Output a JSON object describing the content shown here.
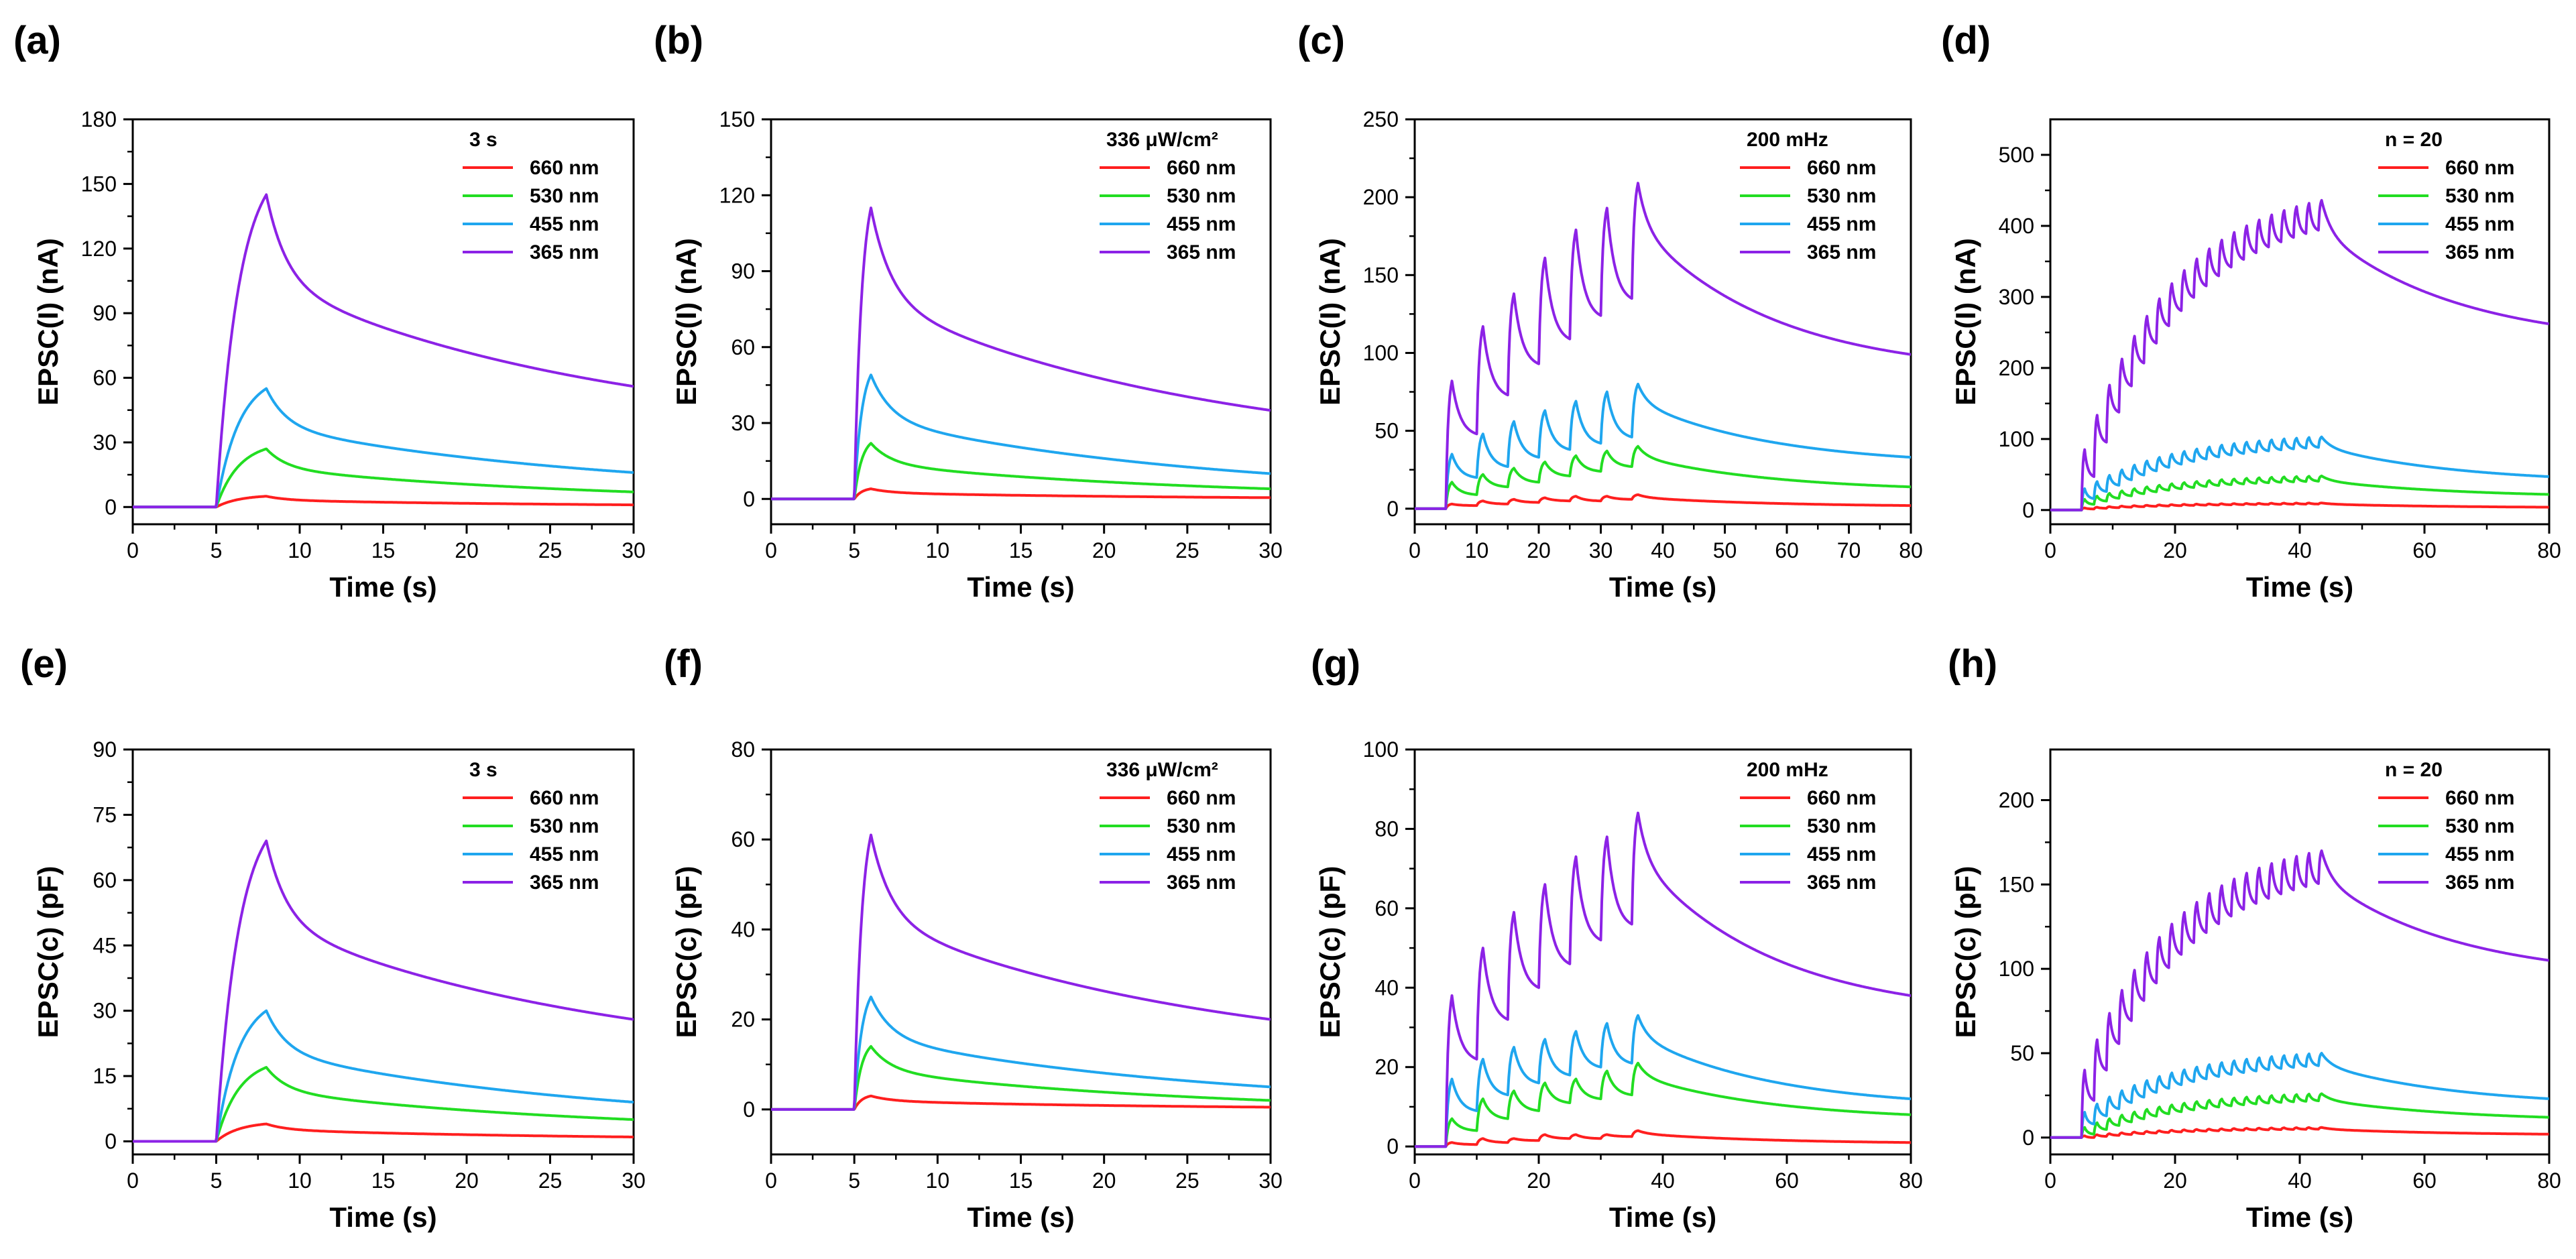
{
  "figure": {
    "panel_labels": [
      "(a)",
      "(b)",
      "(c)",
      "(d)",
      "(e)",
      "(f)",
      "(g)",
      "(h)"
    ]
  },
  "series_colors": {
    "660 nm": "#ff1f1f",
    "530 nm": "#22dd22",
    "455 nm": "#1fa6ef",
    "365 nm": "#8c22e6"
  },
  "chart_data": [
    {
      "panel": "(a)",
      "type": "line",
      "xlabel": "Time (s)",
      "ylabel": "EPSC(I) (nA)",
      "xlim": [
        0,
        30
      ],
      "ylim": [
        -8,
        180
      ],
      "xticks": [
        0,
        5,
        10,
        15,
        20,
        25,
        30
      ],
      "yticks": [
        0,
        30,
        60,
        90,
        120,
        150,
        180
      ],
      "legend_title": "3 s",
      "legend_position": "top-right",
      "stimulus": {
        "mode": "single",
        "start_s": 5,
        "duration_s": 3
      },
      "series": [
        {
          "name": "660 nm",
          "peak": 5,
          "final": 1
        },
        {
          "name": "530 nm",
          "peak": 27,
          "final": 7
        },
        {
          "name": "455 nm",
          "peak": 55,
          "final": 16
        },
        {
          "name": "365 nm",
          "peak": 145,
          "final": 56
        }
      ]
    },
    {
      "panel": "(b)",
      "type": "line",
      "xlabel": "Time (s)",
      "ylabel": "EPSC(I) (nA)",
      "xlim": [
        0,
        30
      ],
      "ylim": [
        -10,
        150
      ],
      "xticks": [
        0,
        5,
        10,
        15,
        20,
        25,
        30
      ],
      "yticks": [
        0,
        30,
        60,
        90,
        120,
        150
      ],
      "legend_title": "336 μW/cm²",
      "legend_position": "top-right",
      "stimulus": {
        "mode": "single",
        "start_s": 5,
        "duration_s": 1
      },
      "series": [
        {
          "name": "660 nm",
          "peak": 4,
          "final": 0.5
        },
        {
          "name": "530 nm",
          "peak": 22,
          "final": 4
        },
        {
          "name": "455 nm",
          "peak": 49,
          "final": 10
        },
        {
          "name": "365 nm",
          "peak": 115,
          "final": 35
        }
      ]
    },
    {
      "panel": "(c)",
      "type": "line",
      "xlabel": "Time (s)",
      "ylabel": "EPSC(I) (nA)",
      "xlim": [
        0,
        80
      ],
      "ylim": [
        -10,
        250
      ],
      "xticks": [
        0,
        10,
        20,
        30,
        40,
        50,
        60,
        70,
        80
      ],
      "yticks": [
        0,
        50,
        100,
        150,
        200,
        250
      ],
      "legend_title": "200 mHz",
      "legend_position": "top-right",
      "stimulus": {
        "mode": "train",
        "start_s": 5,
        "pulses": 7,
        "period_s": 5,
        "pulse_s": 1
      },
      "series": [
        {
          "name": "660 nm",
          "peaks": [
            3,
            5,
            6,
            7,
            8,
            8,
            9
          ],
          "valleys": [
            2,
            3,
            4,
            5,
            5,
            6
          ],
          "final": 2
        },
        {
          "name": "530 nm",
          "peaks": [
            17,
            22,
            26,
            30,
            34,
            37,
            40
          ],
          "valleys": [
            9,
            14,
            17,
            21,
            24,
            27
          ],
          "final": 14
        },
        {
          "name": "455 nm",
          "peaks": [
            35,
            48,
            56,
            63,
            69,
            75,
            80
          ],
          "valleys": [
            20,
            27,
            33,
            38,
            42,
            46
          ],
          "final": 33
        },
        {
          "name": "365 nm",
          "peaks": [
            82,
            117,
            138,
            161,
            179,
            193,
            209
          ],
          "valleys": [
            48,
            73,
            93,
            109,
            124,
            135
          ],
          "final": 99
        }
      ]
    },
    {
      "panel": "(d)",
      "type": "line",
      "xlabel": "Time (s)",
      "ylabel": "EPSC(I) (nA)",
      "xlim": [
        0,
        80
      ],
      "ylim": [
        -20,
        550
      ],
      "xticks": [
        0,
        20,
        40,
        60,
        80
      ],
      "yticks": [
        0,
        100,
        200,
        300,
        400,
        500
      ],
      "legend_title": "n = 20",
      "legend_position": "top-right",
      "stimulus": {
        "mode": "train",
        "start_s": 5,
        "pulses": 20,
        "period_s": 2,
        "pulse_s": 0.5
      },
      "series": [
        {
          "name": "660 nm",
          "first_peak": 3,
          "last_peak": 10,
          "ripple": 1.5,
          "final": 4
        },
        {
          "name": "530 nm",
          "first_peak": 15,
          "last_peak": 48,
          "ripple": 7,
          "final": 22
        },
        {
          "name": "455 nm",
          "first_peak": 30,
          "last_peak": 103,
          "ripple": 14,
          "final": 47
        },
        {
          "name": "365 nm",
          "first_peak": 85,
          "last_peak": 436,
          "ripple": 38,
          "final": 262
        }
      ]
    },
    {
      "panel": "(e)",
      "type": "line",
      "xlabel": "Time (s)",
      "ylabel": "EPSC(c) (pF)",
      "xlim": [
        0,
        30
      ],
      "ylim": [
        -3,
        90
      ],
      "xticks": [
        0,
        5,
        10,
        15,
        20,
        25,
        30
      ],
      "yticks": [
        0,
        15,
        30,
        45,
        60,
        75,
        90
      ],
      "legend_title": "3 s",
      "legend_position": "top-right",
      "stimulus": {
        "mode": "single",
        "start_s": 5,
        "duration_s": 3
      },
      "series": [
        {
          "name": "660 nm",
          "peak": 4,
          "final": 1
        },
        {
          "name": "530 nm",
          "peak": 17,
          "final": 5
        },
        {
          "name": "455 nm",
          "peak": 30,
          "final": 9
        },
        {
          "name": "365 nm",
          "peak": 69,
          "final": 28
        }
      ]
    },
    {
      "panel": "(f)",
      "type": "line",
      "xlabel": "Time (s)",
      "ylabel": "EPSC(c) (pF)",
      "xlim": [
        0,
        30
      ],
      "ylim": [
        -10,
        80
      ],
      "xticks": [
        0,
        5,
        10,
        15,
        20,
        25,
        30
      ],
      "yticks": [
        0,
        20,
        40,
        60,
        80
      ],
      "legend_title": "336 μW/cm²",
      "legend_position": "top-right",
      "stimulus": {
        "mode": "single",
        "start_s": 5,
        "duration_s": 1
      },
      "series": [
        {
          "name": "660 nm",
          "peak": 3,
          "final": 0.5
        },
        {
          "name": "530 nm",
          "peak": 14,
          "final": 2
        },
        {
          "name": "455 nm",
          "peak": 25,
          "final": 5
        },
        {
          "name": "365 nm",
          "peak": 61,
          "final": 20
        }
      ]
    },
    {
      "panel": "(g)",
      "type": "line",
      "xlabel": "Time (s)",
      "ylabel": "EPSC(c) (pF)",
      "xlim": [
        0,
        80
      ],
      "ylim": [
        -2,
        100
      ],
      "xticks": [
        0,
        20,
        40,
        60,
        80
      ],
      "yticks": [
        0,
        20,
        40,
        60,
        80,
        100
      ],
      "legend_title": "200 mHz",
      "legend_position": "top-right",
      "stimulus": {
        "mode": "train",
        "start_s": 5,
        "pulses": 7,
        "period_s": 5,
        "pulse_s": 1
      },
      "series": [
        {
          "name": "660 nm",
          "peaks": [
            1,
            2,
            2,
            3,
            3,
            3,
            4
          ],
          "valleys": [
            0.5,
            1,
            1.5,
            2,
            2,
            2.5
          ],
          "final": 1
        },
        {
          "name": "530 nm",
          "peaks": [
            7,
            12,
            14,
            16,
            17,
            19,
            21
          ],
          "valleys": [
            4,
            7,
            9,
            11,
            12,
            13
          ],
          "final": 8
        },
        {
          "name": "455 nm",
          "peaks": [
            17,
            22,
            25,
            27,
            29,
            31,
            33
          ],
          "valleys": [
            9,
            13,
            16,
            18,
            20,
            21
          ],
          "final": 12
        },
        {
          "name": "365 nm",
          "peaks": [
            38,
            50,
            59,
            66,
            73,
            78,
            84
          ],
          "valleys": [
            22,
            32,
            40,
            46,
            52,
            56
          ],
          "final": 38
        }
      ]
    },
    {
      "panel": "(h)",
      "type": "line",
      "xlabel": "Time (s)",
      "ylabel": "EPSC(c) (pF)",
      "xlim": [
        0,
        80
      ],
      "ylim": [
        -10,
        230
      ],
      "xticks": [
        0,
        20,
        40,
        60,
        80
      ],
      "yticks": [
        0,
        50,
        100,
        150,
        200
      ],
      "legend_title": "n = 20",
      "legend_position": "top-right",
      "stimulus": {
        "mode": "train",
        "start_s": 5,
        "pulses": 20,
        "period_s": 2,
        "pulse_s": 0.5
      },
      "series": [
        {
          "name": "660 nm",
          "first_peak": 1,
          "last_peak": 6,
          "ripple": 1,
          "final": 2
        },
        {
          "name": "530 nm",
          "first_peak": 6,
          "last_peak": 26,
          "ripple": 4,
          "final": 12
        },
        {
          "name": "455 nm",
          "first_peak": 15,
          "last_peak": 50,
          "ripple": 7,
          "final": 23
        },
        {
          "name": "365 nm",
          "first_peak": 40,
          "last_peak": 170,
          "ripple": 18,
          "final": 105
        }
      ]
    }
  ]
}
